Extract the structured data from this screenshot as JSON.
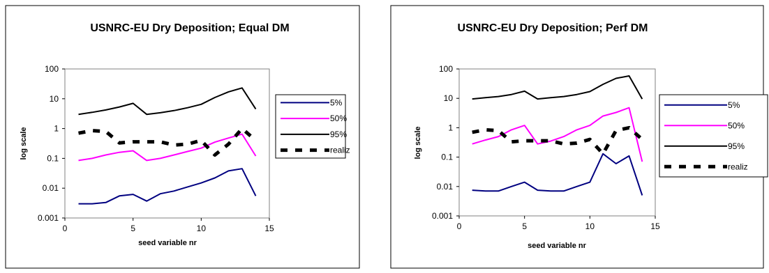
{
  "chart_data": [
    {
      "type": "line",
      "title": "USNRC-EU Dry Deposition; Equal  DM",
      "xlabel": "seed variable nr",
      "ylabel": "log scale",
      "yscale": "log",
      "xlim": [
        0,
        15
      ],
      "ylim": [
        0.001,
        100
      ],
      "x_ticks": [
        "0",
        "5",
        "10",
        "15"
      ],
      "y_ticks": [
        "0.001",
        "0.01",
        "0.1",
        "1",
        "10",
        "100"
      ],
      "grid": false,
      "legend": "right",
      "x": [
        1,
        2,
        3,
        4,
        5,
        6,
        7,
        8,
        9,
        10,
        11,
        12,
        13,
        14
      ],
      "series": [
        {
          "name": "5%",
          "color": "#000080",
          "style": "solid",
          "values": [
            0.003,
            0.003,
            0.0033,
            0.0055,
            0.0062,
            0.0037,
            0.0065,
            0.008,
            0.011,
            0.015,
            0.022,
            0.038,
            0.045,
            0.0055
          ]
        },
        {
          "name": "50%",
          "color": "#ff00ff",
          "style": "solid",
          "values": [
            0.085,
            0.1,
            0.13,
            0.16,
            0.18,
            0.085,
            0.1,
            0.13,
            0.17,
            0.22,
            0.35,
            0.48,
            0.65,
            0.12
          ]
        },
        {
          "name": "95%",
          "color": "#000000",
          "style": "solid",
          "values": [
            3,
            3.5,
            4.2,
            5.3,
            7,
            3,
            3.4,
            4,
            5,
            6.5,
            11,
            17,
            23,
            4.5
          ]
        },
        {
          "name": "realiz",
          "color": "#000000",
          "style": "dashed",
          "values": [
            0.7,
            0.85,
            0.8,
            0.33,
            0.36,
            0.36,
            0.36,
            0.28,
            0.3,
            0.4,
            0.13,
            0.3,
            1,
            0.4
          ]
        }
      ]
    },
    {
      "type": "line",
      "title": "USNRC-EU Dry Deposition; Perf DM",
      "xlabel": "seed variable nr",
      "ylabel": "log scale",
      "yscale": "log",
      "xlim": [
        0,
        15
      ],
      "ylim": [
        0.001,
        100
      ],
      "x_ticks": [
        "0",
        "5",
        "10",
        "15"
      ],
      "y_ticks": [
        "0.001",
        "0.01",
        "0.1",
        "1",
        "10",
        "100"
      ],
      "grid": false,
      "legend": "right",
      "x": [
        1,
        2,
        3,
        4,
        5,
        6,
        7,
        8,
        9,
        10,
        11,
        12,
        13,
        14
      ],
      "series": [
        {
          "name": "5%",
          "color": "#000080",
          "style": "solid",
          "values": [
            0.0075,
            0.007,
            0.007,
            0.01,
            0.014,
            0.0075,
            0.007,
            0.007,
            0.01,
            0.014,
            0.13,
            0.06,
            0.11,
            0.005
          ]
        },
        {
          "name": "50%",
          "color": "#ff00ff",
          "style": "solid",
          "values": [
            0.28,
            0.38,
            0.5,
            0.85,
            1.2,
            0.28,
            0.35,
            0.5,
            0.85,
            1.2,
            2.5,
            3.3,
            4.8,
            0.07
          ]
        },
        {
          "name": "95%",
          "color": "#000000",
          "style": "solid",
          "values": [
            9.5,
            10.5,
            11.5,
            13.5,
            17.5,
            9.5,
            10.5,
            11.5,
            13.5,
            17,
            30,
            48,
            58,
            9.5
          ]
        },
        {
          "name": "realiz",
          "color": "#000000",
          "style": "dashed",
          "values": [
            0.7,
            0.85,
            0.8,
            0.33,
            0.36,
            0.36,
            0.36,
            0.28,
            0.3,
            0.4,
            0.13,
            0.8,
            1,
            0.4
          ]
        }
      ]
    }
  ]
}
